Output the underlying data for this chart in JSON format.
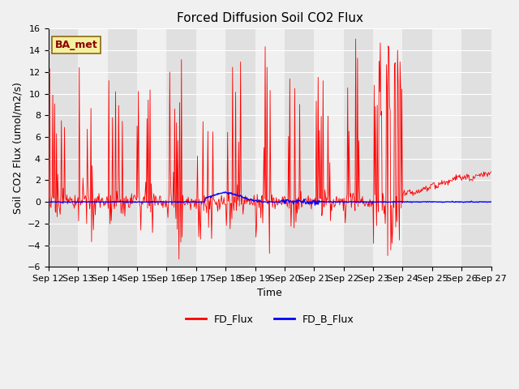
{
  "title": "Forced Diffusion Soil CO2 Flux",
  "xlabel": "Time",
  "ylabel_display": "Soil CO2 Flux (umol/m2/s)",
  "ylim": [
    -6,
    16
  ],
  "yticks": [
    -6,
    -4,
    -2,
    0,
    2,
    4,
    6,
    8,
    10,
    12,
    14,
    16
  ],
  "line1_label": "FD_Flux",
  "line1_color": "red",
  "line2_label": "FD_B_Flux",
  "line2_color": "blue",
  "annotation_text": "BA_met",
  "bg_color": "#f0f0f0",
  "plot_bg_color": "#f0f0f0",
  "grid_color": "white",
  "band_color1": "#e0e0e0",
  "band_color2": "#f0f0f0",
  "title_fontsize": 11,
  "label_fontsize": 9,
  "tick_fontsize": 8
}
